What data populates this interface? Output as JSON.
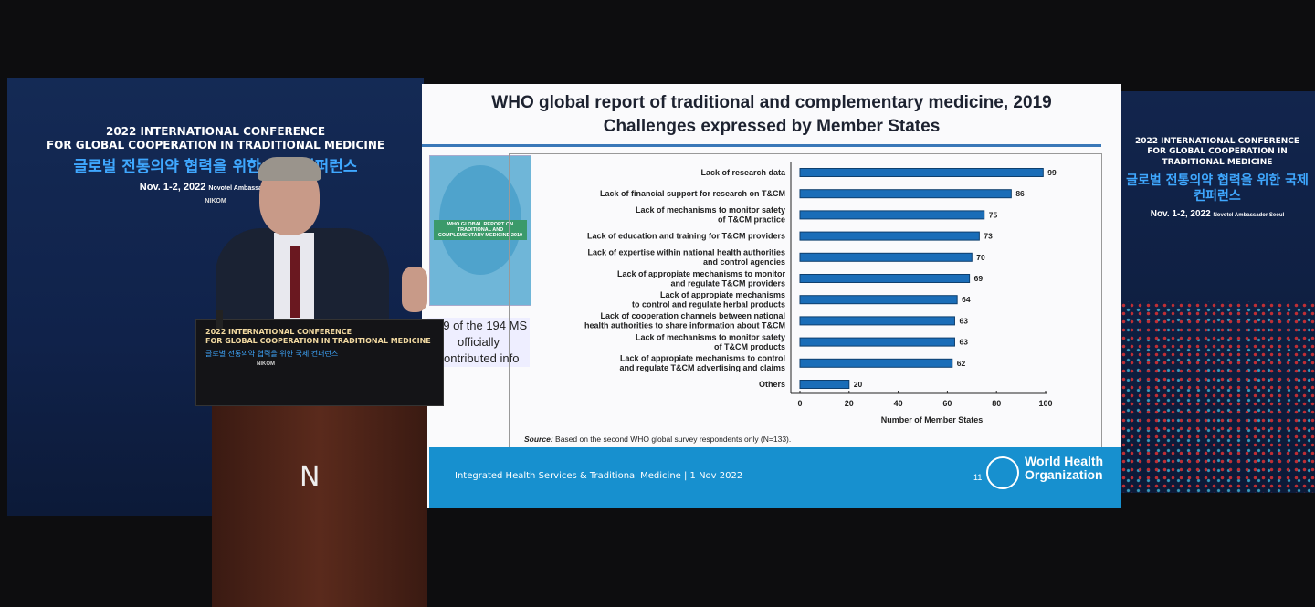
{
  "conference": {
    "title_line1": "2022 INTERNATIONAL CONFERENCE",
    "title_line2": "FOR GLOBAL COOPERATION IN TRADITIONAL MEDICINE",
    "korean_title": "글로벌 전통의약 협력을 위한 국제 컨퍼런스",
    "date_venue": "Nov. 1-2, 2022",
    "venue": "Novotel Ambassador Seoul",
    "organizer": "NIKOM"
  },
  "slide": {
    "title_line1": "WHO global report of traditional and complementary medicine, 2019",
    "title_line2": "Challenges expressed by Member States",
    "book_title": "WHO GLOBAL REPORT ON TRADITIONAL AND COMPLEMENTARY MEDICINE 2019",
    "ms_note": "179 of the 194 MS officially contributed info",
    "source_label": "Source:",
    "source_text": "Based on the second WHO global survey respondents only (N=133).",
    "footer_text": "Integrated Health Services & Traditional Medicine | 1 Nov 2022",
    "page_number": "11",
    "who_logo_text": "World Health Organization",
    "footer_color": "#1790cf",
    "bar_color": "#1a6db8"
  },
  "podium": {
    "logo_letter": "N"
  },
  "chart_data": {
    "type": "bar",
    "orientation": "horizontal",
    "categories": [
      "Lack of research data",
      "Lack of financial support for research on T&CM",
      "Lack of mechanisms to monitor safety of T&CM practice",
      "Lack of education and training for T&CM providers",
      "Lack of expertise within national health authorities and control agencies",
      "Lack of appropiate mechanisms to monitor and regulate T&CM providers",
      "Lack of appropiate mechanisms to control and regulate herbal products",
      "Lack of cooperation channels between national health authorities to share information about T&CM",
      "Lack of mechanisms to monitor safety of T&CM products",
      "Lack of appropiate mechanisms to control and regulate T&CM advertising and claims",
      "Others"
    ],
    "category_lines": [
      [
        "Lack of research data"
      ],
      [
        "Lack of financial support for research on T&CM"
      ],
      [
        "Lack of mechanisms to monitor safety",
        "of T&CM practice"
      ],
      [
        "Lack of education and training for T&CM providers"
      ],
      [
        "Lack of expertise within national health authorities",
        "and control agencies"
      ],
      [
        "Lack of appropiate mechanisms to monitor",
        "and regulate T&CM providers"
      ],
      [
        "Lack of appropiate mechanisms",
        "to control and regulate herbal products"
      ],
      [
        "Lack of cooperation channels between national",
        "health authorities to share information about T&CM"
      ],
      [
        "Lack of mechanisms to monitor safety",
        "of T&CM products"
      ],
      [
        "Lack of appropiate mechanisms to control",
        "and regulate T&CM advertising and claims"
      ],
      [
        "Others"
      ]
    ],
    "values": [
      99,
      86,
      75,
      73,
      70,
      69,
      64,
      63,
      63,
      62,
      20
    ],
    "xlabel": "Number of Member States",
    "xlim": [
      0,
      100
    ],
    "xticks": [
      "0",
      "20",
      "40",
      "60",
      "80",
      "100"
    ],
    "grid": false
  }
}
